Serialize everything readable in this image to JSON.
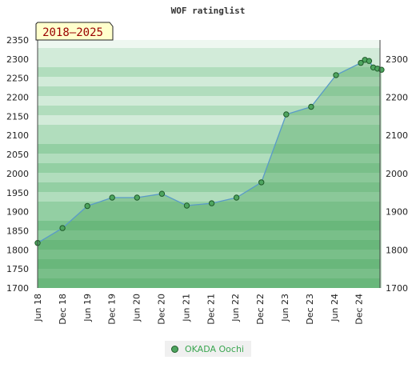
{
  "chart_data": {
    "type": "area",
    "title": "WOF ratinglist",
    "period_label": "2018–2025",
    "x_tick_labels": [
      "Jun 18",
      "Dec 18",
      "Jun 19",
      "Dec 19",
      "Jun 20",
      "Dec 20",
      "Jun 21",
      "Dec 21",
      "Jun 22",
      "Dec 22",
      "Jun 23",
      "Dec 23",
      "Jun 24",
      "Dec 24"
    ],
    "ylim": [
      1700,
      2350
    ],
    "y_ticks_left": [
      1700,
      1750,
      1800,
      1850,
      1900,
      1950,
      2000,
      2050,
      2100,
      2150,
      2200,
      2250,
      2300,
      2350
    ],
    "y_ticks_right": [
      1700,
      1800,
      1900,
      2000,
      2100,
      2200,
      2300
    ],
    "grid": false,
    "legend_position": "bottom-center",
    "series": [
      {
        "name": "OKADA Oochi",
        "color": "#4ea55f",
        "points": [
          {
            "t": "2018-06",
            "y": 1818
          },
          {
            "t": "2018-12",
            "y": 1857
          },
          {
            "t": "2019-06",
            "y": 1915
          },
          {
            "t": "2019-12",
            "y": 1937
          },
          {
            "t": "2020-06",
            "y": 1937
          },
          {
            "t": "2020-12",
            "y": 1947
          },
          {
            "t": "2021-06",
            "y": 1916
          },
          {
            "t": "2021-12",
            "y": 1922
          },
          {
            "t": "2022-06",
            "y": 1937
          },
          {
            "t": "2022-12",
            "y": 1977
          },
          {
            "t": "2023-06",
            "y": 2155
          },
          {
            "t": "2023-12",
            "y": 2175
          },
          {
            "t": "2024-06",
            "y": 2258
          },
          {
            "t": "2024-12",
            "y": 2290
          },
          {
            "t": "2025-01",
            "y": 2298
          },
          {
            "t": "2025-02",
            "y": 2295
          },
          {
            "t": "2025-03",
            "y": 2278
          },
          {
            "t": "2025-04",
            "y": 2275
          },
          {
            "t": "2025-05",
            "y": 2272
          }
        ]
      }
    ]
  }
}
